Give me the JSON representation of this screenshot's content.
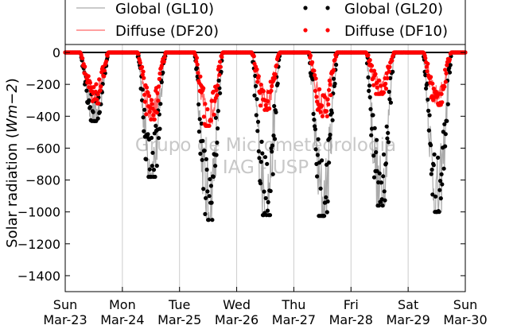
{
  "chart_data": {
    "type": "scatter",
    "title": "",
    "xlabel": "",
    "ylabel": "Solar radiation (Wm−2)",
    "ylabel_parts": [
      "Solar radiation (",
      "Wm",
      "−2",
      ")"
    ],
    "ylim": [
      -1500,
      50
    ],
    "yticks": [
      0,
      -200,
      -400,
      -600,
      -800,
      -1000,
      -1200,
      -1400
    ],
    "xlim": [
      "2014-03-23T00:00",
      "2014-03-30T00:00"
    ],
    "xticks": [
      {
        "day": "Sun",
        "date": "Mar-23"
      },
      {
        "day": "Mon",
        "date": "Mar-24"
      },
      {
        "day": "Tue",
        "date": "Mar-25"
      },
      {
        "day": "Wed",
        "date": "Mar-26"
      },
      {
        "day": "Thu",
        "date": "Mar-27"
      },
      {
        "day": "Fri",
        "date": "Mar-28"
      },
      {
        "day": "Sat",
        "date": "Mar-29"
      },
      {
        "day": "Sun",
        "date": "Mar-30"
      }
    ],
    "grid": "vertical",
    "legend_position": "top",
    "legend": [
      {
        "label": "Global (GL10)",
        "style": "line",
        "color": "#aaaaaa"
      },
      {
        "label": "Global (GL20)",
        "style": "dots",
        "color": "#000000"
      },
      {
        "label": "Diffuse (DF20)",
        "style": "line",
        "color": "#ff6666"
      },
      {
        "label": "Diffuse (DF10)",
        "style": "dots",
        "color": "#ff0000"
      }
    ],
    "watermark": [
      "Grupo de Micrometeorologia",
      "IAG - USP"
    ],
    "daylight_hours": [
      "06:15",
      "18:15"
    ],
    "series": [
      {
        "name": "Global (GL20)",
        "color": "#000000",
        "daily_min": [
          -430,
          -780,
          -1050,
          -1020,
          -1025,
          -960,
          -1000
        ]
      },
      {
        "name": "Global (GL10)",
        "color": "#aaaaaa",
        "daily_min": [
          -440,
          -790,
          -1040,
          -1010,
          -1030,
          -970,
          -1000
        ]
      },
      {
        "name": "Diffuse (DF10)",
        "color": "#ff0000",
        "daily_min": [
          -320,
          -420,
          -460,
          -360,
          -400,
          -260,
          -330
        ]
      },
      {
        "name": "Diffuse (DF20)",
        "color": "#ff6666",
        "daily_min": [
          -310,
          -410,
          -450,
          -350,
          -390,
          -250,
          -320
        ]
      }
    ]
  }
}
